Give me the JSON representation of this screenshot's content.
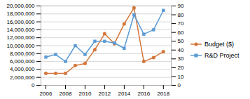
{
  "chart_data": {
    "type": "line",
    "x": [
      2006,
      2007,
      2008,
      2009,
      2010,
      2011,
      2012,
      2013,
      2014,
      2015,
      2016,
      2017,
      2018
    ],
    "series": [
      {
        "name": "Budget ($)",
        "color": "#d4763b",
        "marker": "circle",
        "values": [
          3000000,
          3000000,
          3000000,
          5000000,
          5500000,
          9000000,
          13000000,
          10500000,
          15500000,
          19500000,
          6000000,
          7000000,
          8500000
        ]
      },
      {
        "name": "R&D Project",
        "color": "#5b9bd5",
        "marker": "square",
        "axis": "y2",
        "values": [
          32,
          35,
          27,
          45,
          35,
          50,
          50,
          48,
          42,
          80,
          58,
          63,
          85
        ]
      }
    ],
    "xlim": [
      2005.5,
      2018.8
    ],
    "xticks": [
      2006,
      2008,
      2010,
      2012,
      2014,
      2016,
      2018
    ],
    "ylim": [
      0,
      20000000
    ],
    "yticks": [
      0,
      {
        "value": 2000000,
        "label": "2,000,000"
      },
      {
        "value": 4000000,
        "label": "4,000,000"
      },
      {
        "value": 6000000,
        "label": "6,000,000"
      },
      {
        "value": 8000000,
        "label": "8,000,000"
      },
      {
        "value": 10000000,
        "label": "10,000,000"
      },
      {
        "value": 12000000,
        "label": "12,000,000"
      },
      {
        "value": 14000000,
        "label": "14,000,000"
      },
      {
        "value": 16000000,
        "label": "16,000,000"
      },
      {
        "value": 18000000,
        "label": "18,000,000"
      },
      {
        "value": 20000000,
        "label": "20,000,000"
      }
    ],
    "y2lim": [
      0,
      90
    ],
    "y2ticks": [
      0,
      10,
      20,
      30,
      40,
      50,
      60,
      70,
      80,
      90
    ],
    "grid": true,
    "legend": "right"
  }
}
